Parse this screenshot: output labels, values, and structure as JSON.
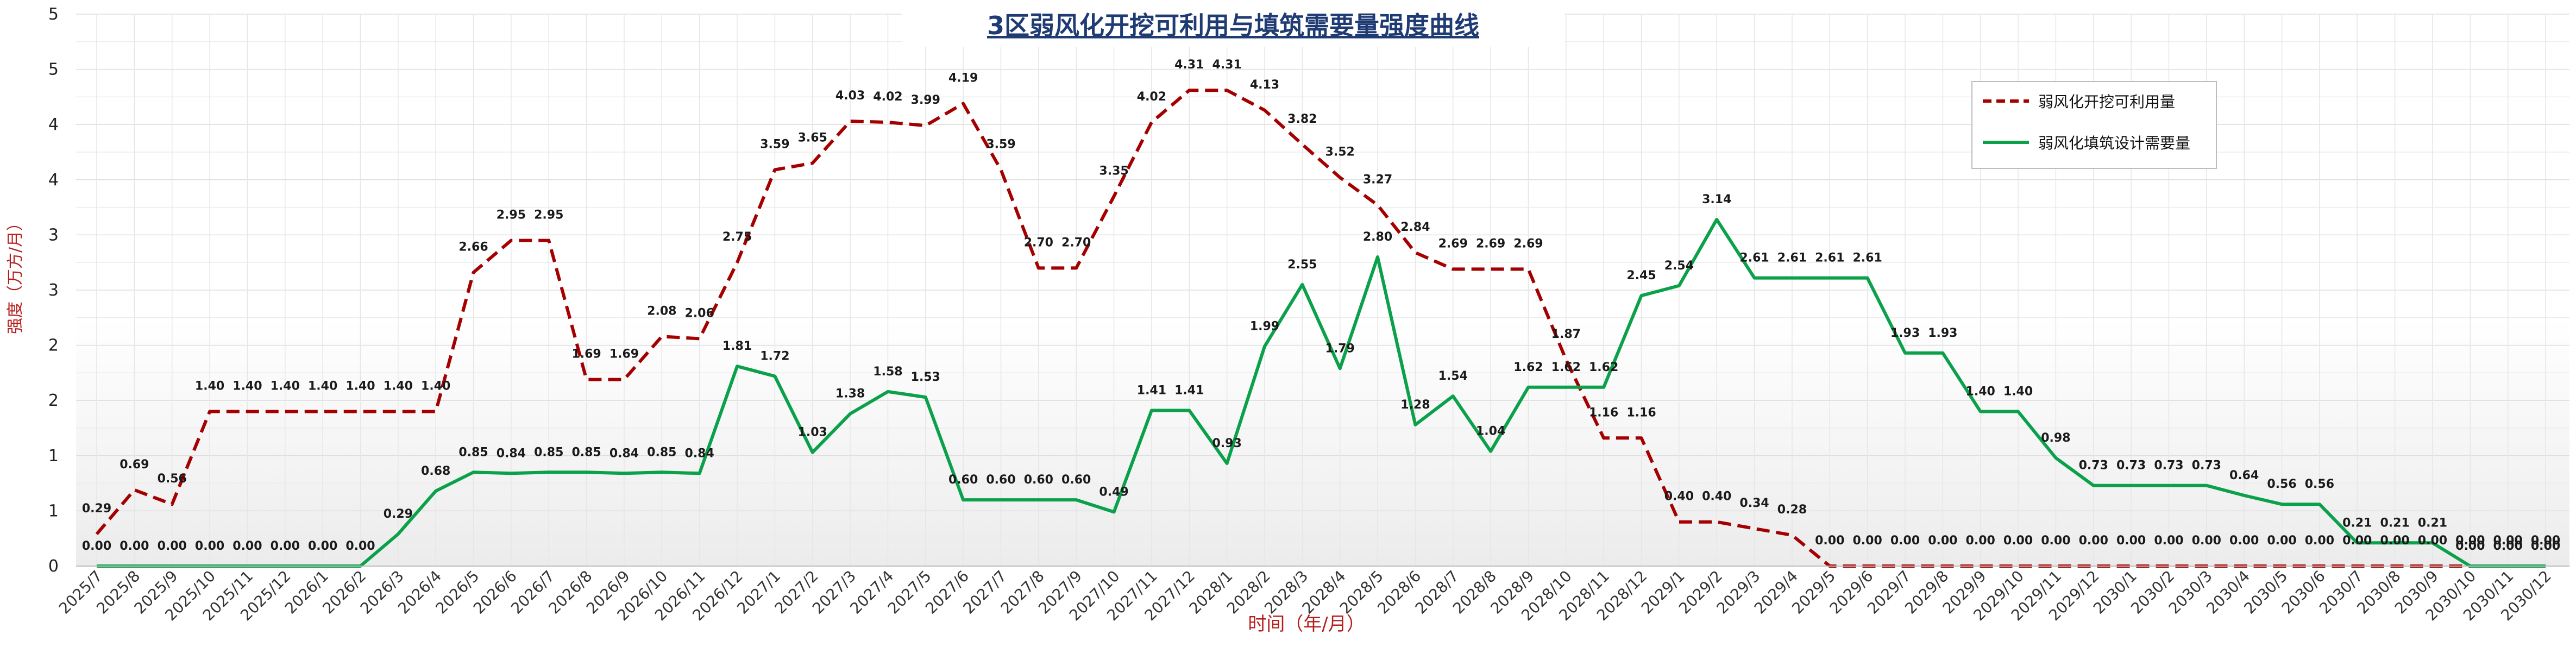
{
  "chart_data": {
    "type": "line",
    "title": "3区弱风化开挖可利用与填筑需要量强度曲线",
    "xlabel": "时间（年/月）",
    "ylabel": "强度（万方/月）",
    "ylim": [
      0,
      5
    ],
    "y_ticks": [
      "0",
      "1",
      "1",
      "2",
      "2",
      "3",
      "3",
      "4",
      "4",
      "5",
      "5"
    ],
    "grid": true,
    "legend_position": "top-right",
    "categories": [
      "2025/7",
      "2025/8",
      "2025/9",
      "2025/10",
      "2025/11",
      "2025/12",
      "2026/1",
      "2026/2",
      "2026/3",
      "2026/4",
      "2026/5",
      "2026/6",
      "2026/7",
      "2026/8",
      "2026/9",
      "2026/10",
      "2026/11",
      "2026/12",
      "2027/1",
      "2027/2",
      "2027/3",
      "2027/4",
      "2027/5",
      "2027/6",
      "2027/7",
      "2027/8",
      "2027/9",
      "2027/10",
      "2027/11",
      "2027/12",
      "2028/1",
      "2028/2",
      "2028/3",
      "2028/4",
      "2028/5",
      "2028/6",
      "2028/7",
      "2028/8",
      "2028/9",
      "2028/10",
      "2028/11",
      "2028/12",
      "2029/1",
      "2029/2",
      "2029/3",
      "2029/4",
      "2029/5",
      "2029/6",
      "2029/7",
      "2029/8",
      "2029/9",
      "2029/10",
      "2029/11",
      "2029/12",
      "2030/1",
      "2030/2",
      "2030/3",
      "2030/4",
      "2030/5",
      "2030/6",
      "2030/7",
      "2030/8",
      "2030/9",
      "2030/10",
      "2030/11",
      "2030/12"
    ],
    "series": [
      {
        "name": "弱风化开挖可利用量",
        "color": "#a50000",
        "style": "dashed",
        "values": [
          0.29,
          0.69,
          0.56,
          1.4,
          1.4,
          1.4,
          1.4,
          1.4,
          1.4,
          1.4,
          2.66,
          2.95,
          2.95,
          1.69,
          1.69,
          2.08,
          2.06,
          2.75,
          3.59,
          3.65,
          4.03,
          4.02,
          3.99,
          4.19,
          3.59,
          2.7,
          2.7,
          3.35,
          4.02,
          4.31,
          4.31,
          4.13,
          3.82,
          3.52,
          3.27,
          2.84,
          2.69,
          2.69,
          2.69,
          1.87,
          1.16,
          1.16,
          0.4,
          0.4,
          0.34,
          0.28,
          0.0,
          0.0,
          0.0,
          0.0,
          0.0,
          0.0,
          0.0,
          0.0,
          0.0,
          0.0,
          0.0,
          0.0,
          0.0,
          0.0,
          0.0,
          0.0,
          0.0,
          0.0,
          0.0,
          0.0
        ]
      },
      {
        "name": "弱风化填筑设计需要量",
        "color": "#0aa14a",
        "style": "solid",
        "values": [
          0.0,
          0.0,
          0.0,
          0.0,
          0.0,
          0.0,
          0.0,
          0.0,
          0.29,
          0.68,
          0.85,
          0.84,
          0.85,
          0.85,
          0.84,
          0.85,
          0.84,
          1.81,
          1.72,
          1.03,
          1.38,
          1.58,
          1.53,
          0.6,
          0.6,
          0.6,
          0.6,
          0.49,
          1.41,
          1.41,
          0.93,
          1.99,
          2.55,
          1.79,
          2.8,
          1.28,
          1.54,
          1.04,
          1.62,
          1.62,
          1.62,
          2.45,
          2.54,
          3.14,
          2.61,
          2.61,
          2.61,
          2.61,
          1.93,
          1.93,
          1.4,
          1.4,
          0.98,
          0.73,
          0.73,
          0.73,
          0.73,
          0.64,
          0.56,
          0.56,
          0.21,
          0.21,
          0.21,
          0.0,
          0.0,
          0.0
        ]
      }
    ]
  }
}
